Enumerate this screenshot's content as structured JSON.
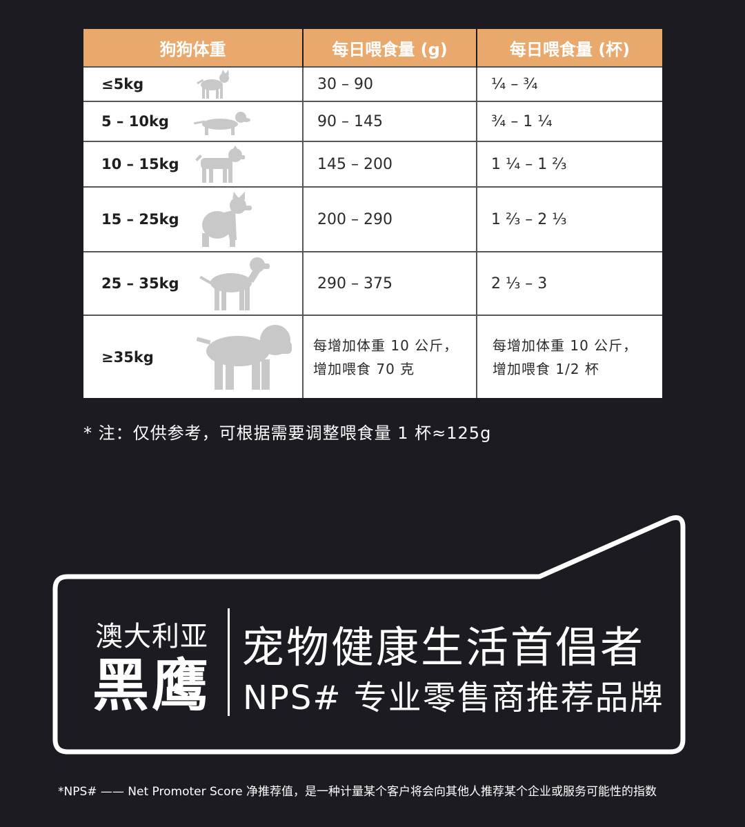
{
  "table": {
    "headers": [
      "狗狗体重",
      "每日喂食量 (g)",
      "每日喂食量 (杯)"
    ],
    "rows": [
      {
        "weight": "≤5kg",
        "grams": "30 – 90",
        "cups": "¼ – ¾",
        "icon": "chihuahua-icon"
      },
      {
        "weight": "5 – 10kg",
        "grams": "90 – 145",
        "cups": "¾ – 1 ¼",
        "icon": "dachshund-icon"
      },
      {
        "weight": "10 – 15kg",
        "grams": "145 – 200",
        "cups": "1 ¼ – 1 ⅔",
        "icon": "terrier-icon"
      },
      {
        "weight": "15 – 25kg",
        "grams": "200 – 290",
        "cups": "1 ⅔ – 2 ⅓",
        "icon": "sitting-dog-icon"
      },
      {
        "weight": "25 – 35kg",
        "grams": "290 – 375",
        "cups": "2 ⅓ – 3",
        "icon": "pointer-dog-icon"
      },
      {
        "weight": "≥35kg",
        "grams_line1": "每增加体重 10 公斤，",
        "grams_line2": "增加喂食 70 克",
        "cups_line1": "每增加体重 10 公斤，",
        "cups_line2": "增加喂食 1/2 杯",
        "icon": "mastiff-icon"
      }
    ]
  },
  "note": "* 注：仅供参考，可根据需要调整喂食量 1 杯≈125g",
  "brand": {
    "region": "澳大利亚",
    "name": "黑鹰",
    "slogan": "宠物健康生活首倡者",
    "subslogan": "NPS# 专业零售商推荐品牌"
  },
  "footnote": "*NPS# —— Net Promoter Score 净推荐值，是一种计量某个客户将会向其他人推荐某个企业或服务可能性的指数",
  "colors": {
    "background": "#1c1b21",
    "header": "#e9a86c",
    "silhouette": "#c8c8c8"
  }
}
